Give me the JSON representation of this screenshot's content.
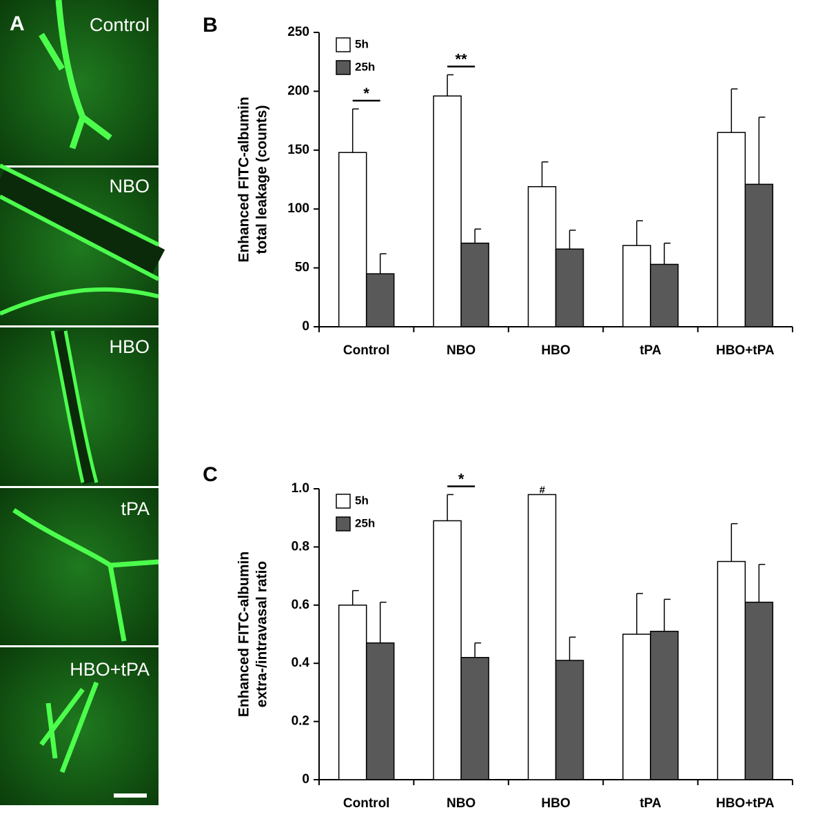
{
  "panel_a": {
    "label": "A",
    "images": [
      "Control",
      "NBO",
      "HBO",
      "tPA",
      "HBO+tPA"
    ]
  },
  "chart_data": [
    {
      "type": "bar",
      "panel_label": "B",
      "y_label": [
        "Enhanced FITC-albumin",
        "total leakage (counts)"
      ],
      "categories": [
        "Control",
        "NBO",
        "HBO",
        "tPA",
        "HBO+tPA"
      ],
      "series": [
        {
          "name": "5h",
          "color": "#ffffff",
          "values": [
            148,
            196,
            119,
            69,
            165
          ],
          "errors": [
            37,
            18,
            21,
            21,
            37
          ]
        },
        {
          "name": "25h",
          "color": "#595959",
          "values": [
            45,
            71,
            66,
            53,
            121
          ],
          "errors": [
            17,
            12,
            16,
            18,
            57
          ]
        }
      ],
      "ylim": [
        0,
        250
      ],
      "yticks": [
        0,
        50,
        100,
        150,
        200,
        250
      ],
      "legend": "top-left",
      "annotations": [
        {
          "text": "*",
          "category": "Control",
          "line": true
        },
        {
          "text": "**",
          "category": "NBO",
          "line": true
        }
      ]
    },
    {
      "type": "bar",
      "panel_label": "C",
      "y_label": [
        "Enhanced FITC-albumin",
        "extra-/intravasal ratio"
      ],
      "categories": [
        "Control",
        "NBO",
        "HBO",
        "tPA",
        "HBO+tPA"
      ],
      "series": [
        {
          "name": "5h",
          "color": "#ffffff",
          "values": [
            0.6,
            0.89,
            0.98,
            0.5,
            0.75
          ],
          "errors": [
            0.05,
            0.09,
            null,
            0.14,
            0.13
          ]
        },
        {
          "name": "25h",
          "color": "#595959",
          "values": [
            0.47,
            0.42,
            0.41,
            0.51,
            0.61
          ],
          "errors": [
            0.14,
            0.05,
            0.08,
            0.11,
            0.13
          ]
        }
      ],
      "ylim": [
        0,
        1
      ],
      "yticks": [
        0,
        0.2,
        0.4,
        0.6,
        0.8,
        {
          "value": 1,
          "label": "1.0"
        }
      ],
      "legend": "top-left",
      "annotations": [
        {
          "text": "*",
          "category": "NBO",
          "line": true
        },
        {
          "text": "#",
          "category": "HBO",
          "line": false
        }
      ]
    }
  ]
}
